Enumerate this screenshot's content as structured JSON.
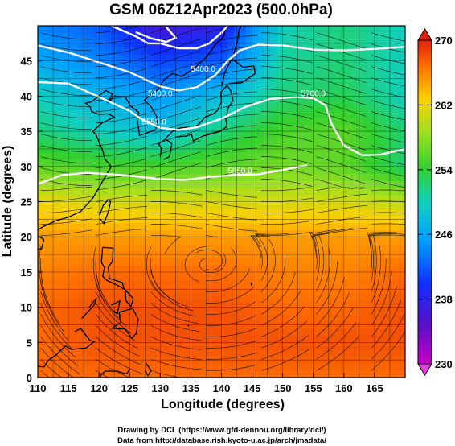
{
  "chart_data": {
    "type": "heatmap",
    "title": "GSM 06Z12Apr2023 (500.0hPa)",
    "xlabel": "Longitude (degrees)",
    "ylabel": "Latitude  (degrees)",
    "xlim": [
      110,
      170
    ],
    "ylim": [
      0,
      50
    ],
    "xticks": [
      "110",
      "115",
      "120",
      "125",
      "130",
      "135",
      "140",
      "145",
      "150",
      "155",
      "160",
      "165"
    ],
    "yticks": [
      "0",
      "5",
      "10",
      "15",
      "20",
      "25",
      "30",
      "35",
      "40",
      "45"
    ],
    "grid": true,
    "grid_step_deg": 2.5,
    "colorbar": {
      "range": [
        230,
        270
      ],
      "ticks": [
        "270",
        "262",
        "254",
        "246",
        "238",
        "230"
      ],
      "placement": "right"
    },
    "fill_field_estimates": {
      "rows_lat": [
        50,
        45,
        40,
        35,
        30,
        25,
        20,
        15,
        10,
        5,
        0
      ],
      "cols_lon": [
        110,
        120,
        130,
        140,
        150,
        160,
        170
      ],
      "values": [
        [
          244,
          242,
          236,
          238,
          250,
          252,
          250
        ],
        [
          246,
          244,
          241,
          242,
          251,
          252,
          250
        ],
        [
          250,
          247,
          245,
          248,
          252,
          253,
          250
        ],
        [
          252,
          250,
          248,
          252,
          255,
          256,
          252
        ],
        [
          256,
          255,
          255,
          256,
          257,
          256,
          252
        ],
        [
          262,
          261,
          261,
          261,
          261,
          261,
          260
        ],
        [
          265,
          265,
          265,
          265,
          265,
          265,
          265
        ],
        [
          266,
          267,
          267,
          267,
          266,
          266,
          267
        ],
        [
          267,
          268,
          268,
          268,
          267,
          267,
          268
        ],
        [
          267,
          268,
          268,
          268,
          268,
          268,
          268
        ],
        [
          267,
          267,
          267,
          267,
          267,
          267,
          267
        ]
      ]
    },
    "contour_labels": [
      {
        "text": "5400.0",
        "lon": 137,
        "lat": 43.5
      },
      {
        "text": "5400.0",
        "lon": 130,
        "lat": 40
      },
      {
        "text": "5550.0",
        "lon": 129,
        "lat": 36
      },
      {
        "text": "5700.0",
        "lon": 155,
        "lat": 40
      },
      {
        "text": "5850.0",
        "lon": 143,
        "lat": 29
      }
    ]
  },
  "credits": {
    "line1": "Drawing by DCL (https://www.gfd-dennou.org/library/dcl/)",
    "line2": "Data from http://database.rish.kyoto-u.ac.jp/arch/jmadata/"
  }
}
